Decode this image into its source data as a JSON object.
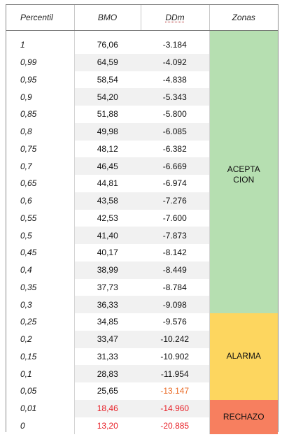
{
  "headers": {
    "percentil": "Percentil",
    "bmo": "BMO",
    "ddm": "DDm",
    "zonas": "Zonas"
  },
  "rows": [
    {
      "p": "1",
      "bmo": "76,06",
      "ddm": "-3.184"
    },
    {
      "p": "0,99",
      "bmo": "64,59",
      "ddm": "-4.092"
    },
    {
      "p": "0,95",
      "bmo": "58,54",
      "ddm": "-4.838"
    },
    {
      "p": "0,9",
      "bmo": "54,20",
      "ddm": "-5.343"
    },
    {
      "p": "0,85",
      "bmo": "51,88",
      "ddm": "-5.800"
    },
    {
      "p": "0,8",
      "bmo": "49,98",
      "ddm": "-6.085"
    },
    {
      "p": "0,75",
      "bmo": "48,12",
      "ddm": "-6.382"
    },
    {
      "p": "0,7",
      "bmo": "46,45",
      "ddm": "-6.669"
    },
    {
      "p": "0,65",
      "bmo": "44,81",
      "ddm": "-6.974"
    },
    {
      "p": "0,6",
      "bmo": "43,58",
      "ddm": "-7.276"
    },
    {
      "p": "0,55",
      "bmo": "42,53",
      "ddm": "-7.600"
    },
    {
      "p": "0,5",
      "bmo": "41,40",
      "ddm": "-7.873"
    },
    {
      "p": "0,45",
      "bmo": "40,17",
      "ddm": "-8.142"
    },
    {
      "p": "0,4",
      "bmo": "38,99",
      "ddm": "-8.449"
    },
    {
      "p": "0,35",
      "bmo": "37,73",
      "ddm": "-8.784"
    },
    {
      "p": "0,3",
      "bmo": "36,33",
      "ddm": "-9.098"
    },
    {
      "p": "0,25",
      "bmo": "34,85",
      "ddm": "-9.576"
    },
    {
      "p": "0,2",
      "bmo": "33,47",
      "ddm": "-10.242"
    },
    {
      "p": "0,15",
      "bmo": "31,33",
      "ddm": "-10.902"
    },
    {
      "p": "0,1",
      "bmo": "28,83",
      "ddm": "-11.954"
    },
    {
      "p": "0,05",
      "bmo": "25,65",
      "ddm": "-13.147"
    },
    {
      "p": "0,01",
      "bmo": "18,46",
      "ddm": "-14.960"
    },
    {
      "p": "0",
      "bmo": "13,20",
      "ddm": "-20.885"
    }
  ],
  "zones": {
    "acceptance_line1": "ACEPTA",
    "acceptance_line2": "CION",
    "alarm": "ALARMA",
    "rejection": "RECHAZO"
  },
  "colors": {
    "acceptance": "#b6dfb1",
    "alarm": "#fdd65f",
    "rejection": "#f77f5f",
    "warning_text": "#ea6a24",
    "critical_text": "#e8232a"
  }
}
